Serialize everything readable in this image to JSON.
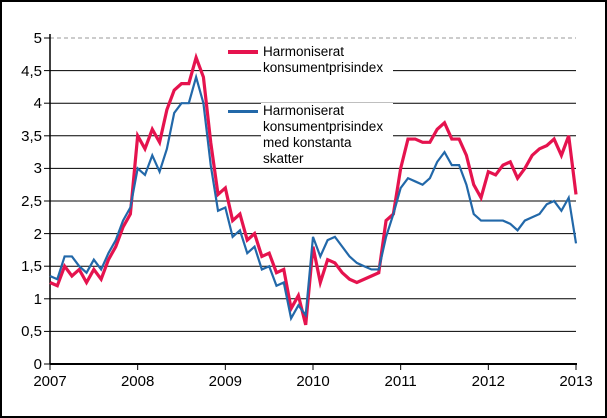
{
  "figure": {
    "background_color": "#ffffff",
    "border_color": "#000000"
  },
  "y_axis": {
    "tick_labels": [
      "5",
      "4,5",
      "4",
      "3,5",
      "3",
      "2,5",
      "2",
      "1,5",
      "1",
      "0,5",
      "0"
    ],
    "min": 0,
    "max": 5
  },
  "x_axis": {
    "tick_labels": [
      "2007",
      "2008",
      "2009",
      "2010",
      "2011",
      "2012",
      "2013"
    ]
  },
  "legend": [
    {
      "label": "Harmoniserat konsumentprisindex",
      "color": "#e5134e"
    },
    {
      "label": "Harmoniserat konsumentprisindex med konstanta skatter",
      "color": "#2268a9"
    }
  ],
  "chart_data": {
    "type": "line",
    "title": "",
    "xlabel": "",
    "ylabel": "",
    "x_start": "2007-01",
    "x_end": "2013-01",
    "frequency": "monthly",
    "ylim": [
      0,
      5
    ],
    "y_tick_step": 0.5,
    "grid": true,
    "top_gridline_style": "dashed-gray",
    "legend_position": "inside-top-right",
    "x_year_ticks": [
      "2007",
      "2008",
      "2009",
      "2010",
      "2011",
      "2012",
      "2013"
    ],
    "series": [
      {
        "name": "Harmoniserat konsumentprisindex",
        "color": "#e5134e",
        "line_width": 3.2,
        "values": [
          1.25,
          1.2,
          1.5,
          1.35,
          1.45,
          1.25,
          1.45,
          1.3,
          1.6,
          1.8,
          2.1,
          2.3,
          3.5,
          3.3,
          3.6,
          3.4,
          3.9,
          4.2,
          4.3,
          4.3,
          4.7,
          4.4,
          3.4,
          2.6,
          2.7,
          2.2,
          2.3,
          1.9,
          2.0,
          1.65,
          1.7,
          1.4,
          1.45,
          0.85,
          1.05,
          0.6,
          1.8,
          1.25,
          1.6,
          1.55,
          1.4,
          1.3,
          1.25,
          1.3,
          1.35,
          1.4,
          2.2,
          2.3,
          3.0,
          3.45,
          3.45,
          3.4,
          3.4,
          3.6,
          3.7,
          3.45,
          3.45,
          3.2,
          2.75,
          2.55,
          2.95,
          2.9,
          3.05,
          3.1,
          2.85,
          3.0,
          3.2,
          3.3,
          3.35,
          3.45,
          3.2,
          3.5,
          2.6
        ]
      },
      {
        "name": "Harmoniserat konsumentprisindex med konstanta skatter",
        "color": "#2268a9",
        "line_width": 2.2,
        "values": [
          1.35,
          1.3,
          1.65,
          1.65,
          1.5,
          1.4,
          1.6,
          1.45,
          1.7,
          1.9,
          2.2,
          2.4,
          3.0,
          2.9,
          3.2,
          2.95,
          3.3,
          3.85,
          4.0,
          4.0,
          4.4,
          4.0,
          3.05,
          2.35,
          2.4,
          1.95,
          2.05,
          1.7,
          1.8,
          1.45,
          1.5,
          1.2,
          1.25,
          0.7,
          0.9,
          0.75,
          1.95,
          1.65,
          1.9,
          1.95,
          1.8,
          1.65,
          1.55,
          1.5,
          1.45,
          1.45,
          1.95,
          2.3,
          2.7,
          2.85,
          2.8,
          2.75,
          2.85,
          3.1,
          3.25,
          3.05,
          3.05,
          2.75,
          2.3,
          2.2,
          2.2,
          2.2,
          2.2,
          2.15,
          2.05,
          2.2,
          2.25,
          2.3,
          2.45,
          2.5,
          2.35,
          2.55,
          1.85
        ]
      }
    ]
  }
}
